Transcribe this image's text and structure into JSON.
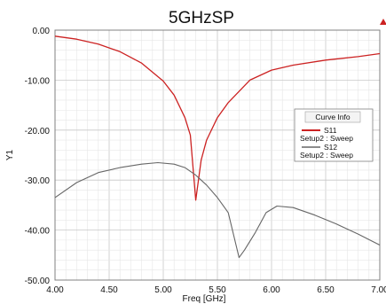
{
  "chart_data": {
    "type": "line",
    "title": "5GHzSP",
    "xlabel": "Freq [GHz]",
    "ylabel": "Y1",
    "xlim": [
      4.0,
      7.0
    ],
    "ylim": [
      -50.0,
      0.0
    ],
    "x_ticks": [
      "4.00",
      "4.50",
      "5.00",
      "5.50",
      "6.00",
      "6.50",
      "7.00"
    ],
    "y_ticks": [
      "0.00",
      "-10.00",
      "-20.00",
      "-30.00",
      "-40.00",
      "-50.00"
    ],
    "grid": true,
    "legend": {
      "title": "Curve Info",
      "placement": "right",
      "entries": [
        {
          "name": "S11",
          "setup": "Setup2 : Sweep",
          "color": "#cc2222"
        },
        {
          "name": "S12",
          "setup": "Setup2 : Sweep",
          "color": "#666666"
        }
      ]
    },
    "series": [
      {
        "name": "S11",
        "color": "#cc2222",
        "points": [
          [
            4.0,
            -1.2
          ],
          [
            4.2,
            -1.8
          ],
          [
            4.4,
            -2.8
          ],
          [
            4.6,
            -4.3
          ],
          [
            4.8,
            -6.6
          ],
          [
            5.0,
            -10.2
          ],
          [
            5.1,
            -13.0
          ],
          [
            5.2,
            -17.5
          ],
          [
            5.25,
            -21.0
          ],
          [
            5.3,
            -34.0
          ],
          [
            5.35,
            -26.0
          ],
          [
            5.4,
            -22.0
          ],
          [
            5.5,
            -17.5
          ],
          [
            5.6,
            -14.5
          ],
          [
            5.8,
            -10.0
          ],
          [
            6.0,
            -8.0
          ],
          [
            6.2,
            -7.0
          ],
          [
            6.5,
            -6.0
          ],
          [
            6.8,
            -5.3
          ],
          [
            7.0,
            -4.7
          ]
        ]
      },
      {
        "name": "S12",
        "color": "#666666",
        "points": [
          [
            4.0,
            -33.5
          ],
          [
            4.2,
            -30.5
          ],
          [
            4.4,
            -28.5
          ],
          [
            4.6,
            -27.5
          ],
          [
            4.8,
            -26.8
          ],
          [
            4.95,
            -26.5
          ],
          [
            5.1,
            -26.8
          ],
          [
            5.2,
            -27.5
          ],
          [
            5.3,
            -29.0
          ],
          [
            5.4,
            -31.0
          ],
          [
            5.5,
            -33.5
          ],
          [
            5.6,
            -36.5
          ],
          [
            5.7,
            -45.5
          ],
          [
            5.75,
            -44.0
          ],
          [
            5.85,
            -40.5
          ],
          [
            5.95,
            -36.5
          ],
          [
            6.05,
            -35.2
          ],
          [
            6.2,
            -35.5
          ],
          [
            6.4,
            -37.0
          ],
          [
            6.6,
            -38.8
          ],
          [
            6.8,
            -40.8
          ],
          [
            7.0,
            -43.0
          ]
        ]
      }
    ]
  },
  "marker_color": "#cc2222"
}
